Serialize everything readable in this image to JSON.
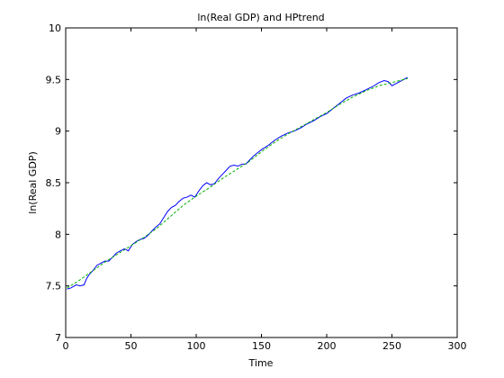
{
  "chart_data": {
    "type": "line",
    "title": "ln(Real GDP) and HPtrend",
    "xlabel": "Time",
    "ylabel": "ln(Real GDP)",
    "xlim": [
      0,
      300
    ],
    "ylim": [
      7,
      10
    ],
    "xticks": [
      0,
      50,
      100,
      150,
      200,
      250,
      300
    ],
    "yticks": [
      7,
      7.5,
      8,
      8.5,
      9,
      9.5,
      10
    ],
    "xtick_labels": [
      "0",
      "50",
      "100",
      "150",
      "200",
      "250",
      "300"
    ],
    "ytick_labels": [
      "7",
      "7.5",
      "8",
      "8.5",
      "9",
      "9.5",
      "10"
    ],
    "grid": false,
    "legend": "none",
    "series": [
      {
        "color": "#0000ff",
        "x": [
          1,
          4,
          8,
          11,
          14,
          16,
          18,
          21,
          24,
          27,
          30,
          33,
          36,
          39,
          42,
          45,
          48,
          51,
          54,
          57,
          60,
          63,
          66,
          69,
          72,
          75,
          78,
          81,
          84,
          87,
          90,
          93,
          96,
          99,
          102,
          105,
          108,
          111,
          114,
          117,
          120,
          123,
          126,
          129,
          132,
          135,
          138,
          141,
          144,
          147,
          150,
          155,
          160,
          165,
          170,
          175,
          180,
          185,
          190,
          195,
          200,
          205,
          210,
          215,
          220,
          225,
          230,
          235,
          240,
          244,
          247,
          250,
          253,
          256,
          259,
          262
        ],
        "y": [
          7.47,
          7.48,
          7.51,
          7.5,
          7.51,
          7.57,
          7.61,
          7.65,
          7.7,
          7.72,
          7.74,
          7.74,
          7.78,
          7.82,
          7.84,
          7.86,
          7.84,
          7.9,
          7.93,
          7.95,
          7.96,
          7.99,
          8.03,
          8.07,
          8.1,
          8.16,
          8.22,
          8.26,
          8.28,
          8.32,
          8.35,
          8.36,
          8.38,
          8.36,
          8.42,
          8.47,
          8.5,
          8.48,
          8.49,
          8.54,
          8.58,
          8.62,
          8.66,
          8.67,
          8.66,
          8.68,
          8.68,
          8.72,
          8.76,
          8.79,
          8.82,
          8.86,
          8.91,
          8.95,
          8.98,
          9.0,
          9.03,
          9.07,
          9.1,
          9.14,
          9.17,
          9.22,
          9.27,
          9.32,
          9.35,
          9.37,
          9.4,
          9.43,
          9.47,
          9.49,
          9.48,
          9.44,
          9.46,
          9.48,
          9.5,
          9.52
        ]
      },
      {
        "color": "#00b000",
        "x": [
          1,
          10,
          20,
          30,
          40,
          50,
          60,
          70,
          80,
          90,
          100,
          110,
          120,
          130,
          140,
          150,
          160,
          170,
          180,
          190,
          200,
          210,
          220,
          230,
          240,
          250,
          262
        ],
        "y": [
          7.48,
          7.55,
          7.64,
          7.73,
          7.81,
          7.89,
          7.97,
          8.06,
          8.17,
          8.28,
          8.37,
          8.45,
          8.54,
          8.62,
          8.7,
          8.8,
          8.89,
          8.97,
          9.04,
          9.11,
          9.18,
          9.26,
          9.33,
          9.39,
          9.44,
          9.47,
          9.51
        ]
      }
    ]
  }
}
